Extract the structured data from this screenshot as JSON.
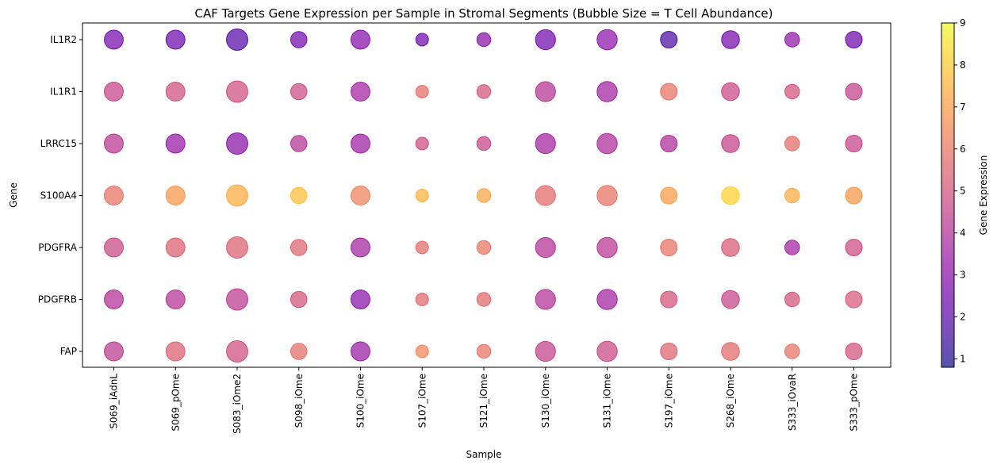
{
  "chart_data": {
    "type": "scatter",
    "title": "CAF Targets Gene Expression per Sample in Stromal Segments (Bubble Size = T Cell Abundance)",
    "xlabel": "Sample",
    "ylabel": "Gene",
    "samples": [
      "S069_iAdnL",
      "S069_pOme",
      "S083_iOme2",
      "S098_iOme",
      "S100_iOme",
      "S107_iOme",
      "S121_iOme",
      "S130_iOme",
      "S131_iOme",
      "S197_iOme",
      "S268_iOme",
      "S333_iOvaR",
      "S333_pOme"
    ],
    "genes": [
      "FAP",
      "PDGFRB",
      "PDGFRA",
      "S100A4",
      "LRRC15",
      "IL1R1",
      "IL1R2"
    ],
    "expression": [
      [
        4.3,
        4.0,
        4.7,
        5.9,
        4.2,
        4.6,
        2.6
      ],
      [
        5.4,
        4.1,
        5.4,
        6.9,
        3.3,
        4.9,
        2.3
      ],
      [
        4.9,
        4.3,
        5.4,
        7.4,
        3.0,
        4.9,
        1.9
      ],
      [
        5.8,
        5.0,
        5.5,
        7.8,
        4.1,
        4.8,
        2.5
      ],
      [
        3.4,
        3.0,
        3.6,
        6.3,
        3.5,
        3.6,
        2.9
      ],
      [
        6.4,
        5.6,
        5.8,
        7.5,
        4.8,
        5.8,
        2.4
      ],
      [
        5.9,
        5.7,
        6.0,
        7.2,
        4.6,
        5.1,
        3.0
      ],
      [
        4.5,
        4.0,
        4.0,
        5.7,
        3.6,
        4.1,
        2.5
      ],
      [
        4.7,
        3.6,
        4.2,
        5.9,
        3.9,
        3.6,
        3.1
      ],
      [
        5.5,
        5.0,
        5.9,
        7.0,
        3.9,
        5.9,
        1.7
      ],
      [
        5.7,
        4.6,
        5.2,
        8.2,
        4.5,
        4.7,
        2.6
      ],
      [
        5.9,
        5.0,
        3.6,
        7.4,
        5.8,
        5.0,
        3.2
      ],
      [
        5.0,
        5.2,
        4.8,
        6.9,
        4.6,
        4.5,
        2.4
      ]
    ],
    "t_cell_abundance": [
      4.5,
      4.5,
      5.7,
      3.3,
      4.5,
      2.0,
      2.4,
      5.0,
      5.1,
      3.5,
      4.0,
      2.7,
      3.5
    ],
    "colorbar": {
      "label": "Gene Expression",
      "min": 0.8,
      "max": 9,
      "ticks": [
        1,
        2,
        3,
        4,
        5,
        6,
        7,
        8,
        9
      ],
      "colormap": "plasma",
      "alpha": 0.7
    },
    "grid": false,
    "legend": "none"
  }
}
